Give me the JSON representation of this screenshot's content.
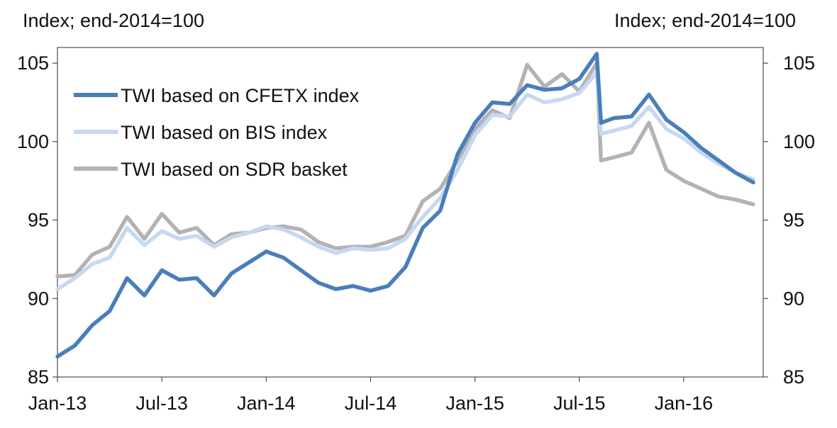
{
  "chart_data": {
    "type": "line",
    "ylabel_left": "Index; end-2014=100",
    "ylabel_right": "Index; end-2014=100",
    "ylim": [
      85,
      106
    ],
    "y_ticks": [
      85,
      90,
      95,
      100,
      105
    ],
    "x_ticks": [
      "Jan-13",
      "Jul-13",
      "Jan-14",
      "Jul-14",
      "Jan-15",
      "Jul-15",
      "Jan-16"
    ],
    "x_range": [
      "2013-01",
      "2016-05"
    ],
    "grid": false,
    "legend_position": "top-left",
    "series": [
      {
        "name": "TWI based on CFETX index",
        "color": "#4a7ebb",
        "points": [
          [
            "2013-01",
            86.3
          ],
          [
            "2013-02",
            87.0
          ],
          [
            "2013-03",
            88.3
          ],
          [
            "2013-04",
            89.2
          ],
          [
            "2013-05",
            91.3
          ],
          [
            "2013-06",
            90.2
          ],
          [
            "2013-07",
            91.8
          ],
          [
            "2013-08",
            91.2
          ],
          [
            "2013-09",
            91.3
          ],
          [
            "2013-10",
            90.2
          ],
          [
            "2013-11",
            91.6
          ],
          [
            "2013-12",
            92.3
          ],
          [
            "2014-01",
            93.0
          ],
          [
            "2014-02",
            92.6
          ],
          [
            "2014-03",
            91.8
          ],
          [
            "2014-04",
            91.0
          ],
          [
            "2014-05",
            90.6
          ],
          [
            "2014-06",
            90.8
          ],
          [
            "2014-07",
            90.5
          ],
          [
            "2014-08",
            90.8
          ],
          [
            "2014-09",
            92.0
          ],
          [
            "2014-10",
            94.5
          ],
          [
            "2014-11",
            95.6
          ],
          [
            "2014-12",
            99.2
          ],
          [
            "2015-01",
            101.2
          ],
          [
            "2015-02",
            102.5
          ],
          [
            "2015-03",
            102.4
          ],
          [
            "2015-04",
            103.6
          ],
          [
            "2015-05",
            103.3
          ],
          [
            "2015-06",
            103.4
          ],
          [
            "2015-07",
            104.0
          ],
          [
            "2015-08",
            105.6
          ],
          [
            "2015-08",
            101.2
          ],
          [
            "2015-09",
            101.5
          ],
          [
            "2015-10",
            101.6
          ],
          [
            "2015-11",
            103.0
          ],
          [
            "2015-12",
            101.4
          ],
          [
            "2016-01",
            100.6
          ],
          [
            "2016-02",
            99.6
          ],
          [
            "2016-03",
            98.8
          ],
          [
            "2016-04",
            98.0
          ],
          [
            "2016-05",
            97.4
          ]
        ]
      },
      {
        "name": "TWI based on BIS index",
        "color": "#c6d9f1",
        "points": [
          [
            "2013-01",
            90.6
          ],
          [
            "2013-02",
            91.3
          ],
          [
            "2013-03",
            92.2
          ],
          [
            "2013-04",
            92.6
          ],
          [
            "2013-05",
            94.5
          ],
          [
            "2013-06",
            93.4
          ],
          [
            "2013-07",
            94.3
          ],
          [
            "2013-08",
            93.8
          ],
          [
            "2013-09",
            94.0
          ],
          [
            "2013-10",
            93.3
          ],
          [
            "2013-11",
            93.9
          ],
          [
            "2013-12",
            94.2
          ],
          [
            "2014-01",
            94.6
          ],
          [
            "2014-02",
            94.4
          ],
          [
            "2014-03",
            93.9
          ],
          [
            "2014-04",
            93.3
          ],
          [
            "2014-05",
            92.9
          ],
          [
            "2014-06",
            93.2
          ],
          [
            "2014-07",
            93.1
          ],
          [
            "2014-08",
            93.2
          ],
          [
            "2014-09",
            93.8
          ],
          [
            "2014-10",
            95.2
          ],
          [
            "2014-11",
            96.4
          ],
          [
            "2014-12",
            98.2
          ],
          [
            "2015-01",
            100.4
          ],
          [
            "2015-02",
            101.7
          ],
          [
            "2015-03",
            101.6
          ],
          [
            "2015-04",
            103.0
          ],
          [
            "2015-05",
            102.5
          ],
          [
            "2015-06",
            102.7
          ],
          [
            "2015-07",
            103.1
          ],
          [
            "2015-08",
            104.4
          ],
          [
            "2015-08",
            100.5
          ],
          [
            "2015-09",
            100.7
          ],
          [
            "2015-10",
            101.0
          ],
          [
            "2015-11",
            102.2
          ],
          [
            "2015-12",
            100.8
          ],
          [
            "2016-01",
            100.2
          ],
          [
            "2016-02",
            99.3
          ],
          [
            "2016-03",
            98.6
          ],
          [
            "2016-04",
            98.0
          ],
          [
            "2016-05",
            97.6
          ]
        ]
      },
      {
        "name": "TWI based on SDR basket",
        "color": "#b3b3b3",
        "points": [
          [
            "2013-01",
            91.4
          ],
          [
            "2013-02",
            91.5
          ],
          [
            "2013-03",
            92.8
          ],
          [
            "2013-04",
            93.3
          ],
          [
            "2013-05",
            95.2
          ],
          [
            "2013-06",
            93.8
          ],
          [
            "2013-07",
            95.4
          ],
          [
            "2013-08",
            94.2
          ],
          [
            "2013-09",
            94.5
          ],
          [
            "2013-10",
            93.4
          ],
          [
            "2013-11",
            94.1
          ],
          [
            "2013-12",
            94.2
          ],
          [
            "2014-01",
            94.5
          ],
          [
            "2014-02",
            94.6
          ],
          [
            "2014-03",
            94.4
          ],
          [
            "2014-04",
            93.6
          ],
          [
            "2014-05",
            93.2
          ],
          [
            "2014-06",
            93.3
          ],
          [
            "2014-07",
            93.3
          ],
          [
            "2014-08",
            93.6
          ],
          [
            "2014-09",
            94.0
          ],
          [
            "2014-10",
            96.2
          ],
          [
            "2014-11",
            97.0
          ],
          [
            "2014-12",
            98.8
          ],
          [
            "2015-01",
            100.8
          ],
          [
            "2015-02",
            102.0
          ],
          [
            "2015-03",
            101.5
          ],
          [
            "2015-04",
            104.9
          ],
          [
            "2015-05",
            103.5
          ],
          [
            "2015-06",
            104.3
          ],
          [
            "2015-07",
            103.2
          ],
          [
            "2015-08",
            105.0
          ],
          [
            "2015-08",
            98.8
          ],
          [
            "2015-09",
            99.0
          ],
          [
            "2015-10",
            99.3
          ],
          [
            "2015-11",
            101.2
          ],
          [
            "2015-12",
            98.2
          ],
          [
            "2016-01",
            97.5
          ],
          [
            "2016-02",
            97.0
          ],
          [
            "2016-03",
            96.5
          ],
          [
            "2016-04",
            96.3
          ],
          [
            "2016-05",
            96.0
          ]
        ]
      }
    ]
  }
}
